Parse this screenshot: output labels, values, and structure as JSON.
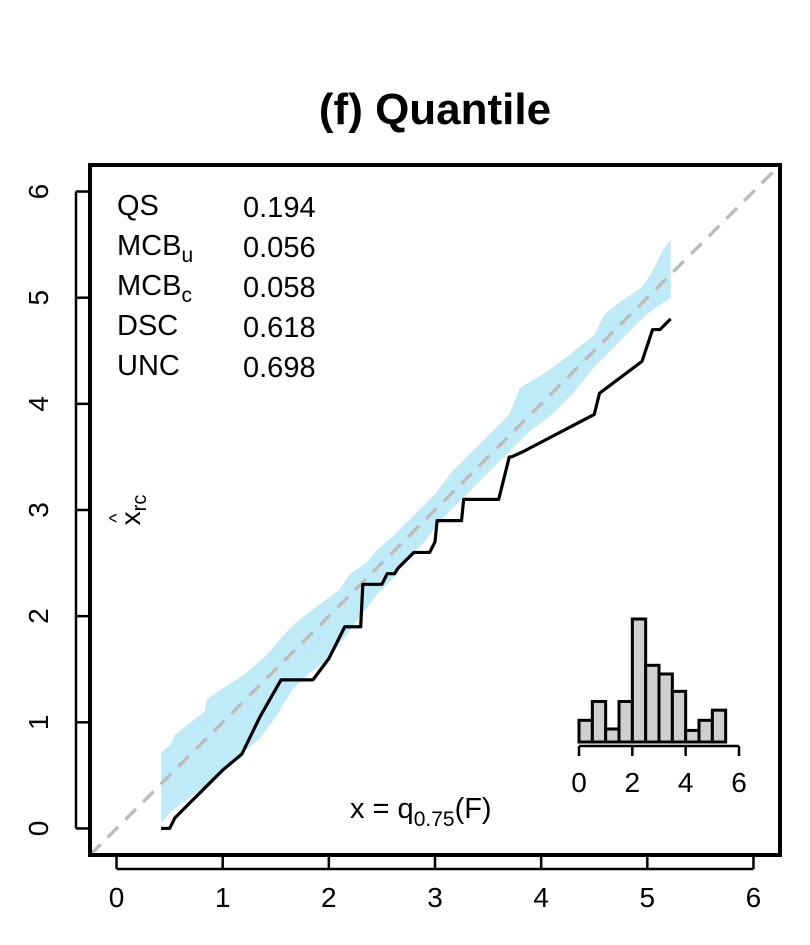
{
  "chart_data": {
    "type": "line",
    "title": "(f) Quantile",
    "xlabel": "",
    "ylabel": "x̂_rc",
    "xlim": [
      -0.25,
      6.25
    ],
    "ylim": [
      -0.25,
      6.25
    ],
    "xticks": [
      0,
      1,
      2,
      3,
      4,
      5,
      6
    ],
    "yticks": [
      0,
      1,
      2,
      3,
      4,
      5,
      6
    ],
    "reference_line": {
      "style": "dashed",
      "color": "#bdbdbd",
      "points": [
        [
          -0.25,
          -0.25
        ],
        [
          6.25,
          6.25
        ]
      ]
    },
    "stats": [
      {
        "name": "QS",
        "value": "0.194"
      },
      {
        "name": "MCB_u",
        "value": "0.056"
      },
      {
        "name": "MCB_c",
        "value": "0.058"
      },
      {
        "name": "DSC",
        "value": "0.618"
      },
      {
        "name": "UNC",
        "value": "0.698"
      }
    ],
    "annotation": "x = q_0.75(F)",
    "band": {
      "color": "#bfeaf7",
      "upper": [
        [
          0.42,
          0.72
        ],
        [
          0.5,
          0.78
        ],
        [
          0.55,
          0.88
        ],
        [
          0.7,
          1.0
        ],
        [
          0.83,
          1.1
        ],
        [
          0.85,
          1.22
        ],
        [
          1.0,
          1.32
        ],
        [
          1.2,
          1.45
        ],
        [
          1.4,
          1.62
        ],
        [
          1.6,
          1.85
        ],
        [
          1.7,
          1.95
        ],
        [
          1.9,
          2.1
        ],
        [
          2.1,
          2.25
        ],
        [
          2.2,
          2.4
        ],
        [
          2.35,
          2.5
        ],
        [
          2.45,
          2.62
        ],
        [
          2.6,
          2.75
        ],
        [
          2.75,
          2.9
        ],
        [
          2.9,
          3.05
        ],
        [
          3.0,
          3.15
        ],
        [
          3.15,
          3.35
        ],
        [
          3.35,
          3.55
        ],
        [
          3.55,
          3.75
        ],
        [
          3.7,
          3.9
        ],
        [
          3.8,
          4.15
        ],
        [
          4.05,
          4.3
        ],
        [
          4.25,
          4.45
        ],
        [
          4.5,
          4.65
        ],
        [
          4.6,
          4.85
        ],
        [
          4.8,
          5.0
        ],
        [
          4.95,
          5.1
        ],
        [
          5.05,
          5.25
        ],
        [
          5.15,
          5.45
        ],
        [
          5.22,
          5.55
        ]
      ],
      "lower": [
        [
          0.42,
          0.05
        ],
        [
          0.5,
          0.15
        ],
        [
          0.7,
          0.3
        ],
        [
          0.9,
          0.45
        ],
        [
          1.0,
          0.52
        ],
        [
          1.2,
          0.72
        ],
        [
          1.35,
          0.85
        ],
        [
          1.5,
          1.05
        ],
        [
          1.65,
          1.3
        ],
        [
          1.8,
          1.45
        ],
        [
          2.0,
          1.6
        ],
        [
          2.15,
          1.8
        ],
        [
          2.3,
          2.0
        ],
        [
          2.45,
          2.2
        ],
        [
          2.6,
          2.35
        ],
        [
          2.75,
          2.55
        ],
        [
          2.9,
          2.7
        ],
        [
          3.05,
          2.9
        ],
        [
          3.2,
          3.05
        ],
        [
          3.4,
          3.25
        ],
        [
          3.6,
          3.45
        ],
        [
          3.75,
          3.6
        ],
        [
          3.9,
          3.75
        ],
        [
          4.1,
          3.9
        ],
        [
          4.3,
          4.1
        ],
        [
          4.5,
          4.35
        ],
        [
          4.7,
          4.55
        ],
        [
          4.85,
          4.7
        ],
        [
          5.0,
          4.85
        ],
        [
          5.22,
          5.0
        ]
      ]
    },
    "series": [
      {
        "color": "#000000",
        "x": [
          0.42,
          0.5,
          0.55,
          0.7,
          0.8,
          0.9,
          1.0,
          1.18,
          1.35,
          1.55,
          1.65,
          1.85,
          2.0,
          2.15,
          2.2,
          2.3,
          2.32,
          2.5,
          2.55,
          2.62,
          2.65,
          2.8,
          2.85,
          2.95,
          3.0,
          3.02,
          3.25,
          3.27,
          3.6,
          3.7,
          3.72,
          3.83,
          4.5,
          4.55,
          4.95,
          5.05,
          5.12,
          5.22
        ],
        "y": [
          0.0,
          0.0,
          0.1,
          0.25,
          0.35,
          0.45,
          0.55,
          0.7,
          1.05,
          1.4,
          1.4,
          1.4,
          1.6,
          1.9,
          1.9,
          1.9,
          2.3,
          2.3,
          2.4,
          2.4,
          2.45,
          2.6,
          2.6,
          2.6,
          2.7,
          2.9,
          2.9,
          3.1,
          3.1,
          3.5,
          3.5,
          3.55,
          3.9,
          4.1,
          4.4,
          4.7,
          4.7,
          4.8
        ]
      }
    ],
    "inset_histogram": {
      "xticks": [
        0,
        2,
        4,
        6
      ],
      "bin_edges": [
        0,
        0.5,
        1,
        1.5,
        2,
        2.5,
        3,
        3.5,
        4,
        4.5,
        5,
        5.5,
        6
      ],
      "heights": [
        1.5,
        2.8,
        0.9,
        2.8,
        8.5,
        5.3,
        4.7,
        3.5,
        0.8,
        1.5,
        2.2,
        0
      ]
    }
  }
}
